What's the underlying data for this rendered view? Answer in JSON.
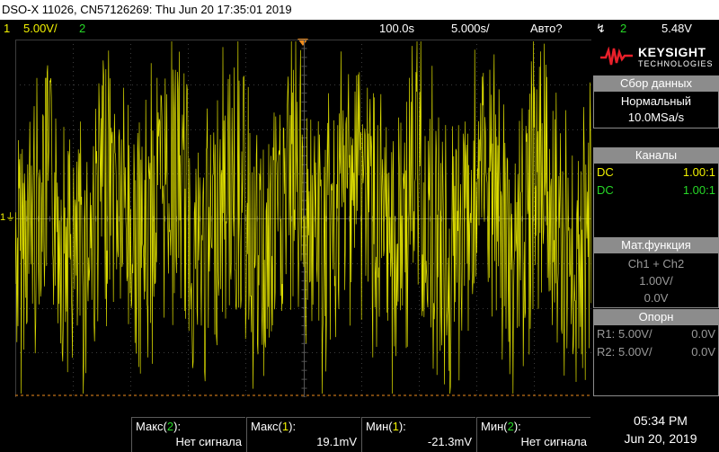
{
  "title_bar": "DSO-X 11026, CN57126269: Thu Jun 20 17:35:01 2019",
  "status": {
    "ch1_num": "1",
    "ch1_scale": "5.00V/",
    "ch2_num": "2",
    "timebase_pos": "100.0s",
    "timebase_scale": "5.000s/",
    "trigger_mode": "Авто?",
    "trigger_icon": "trigger-edge-icon",
    "trigger_src": "2",
    "trigger_level": "5.48V"
  },
  "logo": {
    "brand": "KEYSIGHT",
    "sub": "TECHNOLOGIES"
  },
  "acquisition": {
    "header": "Сбор данных",
    "mode": "Нормальный",
    "rate": "10.0MSa/s"
  },
  "channels": {
    "header": "Каналы",
    "items": [
      {
        "coupling": "DC",
        "ratio": "1.00:1",
        "color": "#f2f200"
      },
      {
        "coupling": "DC",
        "ratio": "1.00:1",
        "color": "#27d827"
      }
    ]
  },
  "math": {
    "header": "Мат.функция",
    "expr": "Ch1 + Ch2",
    "scale": "1.00V/",
    "offset": "0.0V"
  },
  "reference": {
    "header": "Опорн",
    "items": [
      {
        "name": "R1:",
        "scale": "5.00V/",
        "offset": "0.0V"
      },
      {
        "name": "R2:",
        "scale": "5.00V/",
        "offset": "0.0V"
      }
    ]
  },
  "measurements": [
    {
      "label": "Макс(2):",
      "value": "Нет сигнала",
      "color": "#27d827"
    },
    {
      "label": "Макс(1):",
      "value": "19.1mV",
      "color": "#f2f200"
    },
    {
      "label": "Мин(1):",
      "value": "-21.3mV",
      "color": "#f2f200"
    },
    {
      "label": "Мин(2):",
      "value": "Нет сигнала",
      "color": "#27d827"
    }
  ],
  "clock": {
    "time": "05:34 PM",
    "date": "Jun 20, 2019"
  },
  "ground_marker": "1",
  "colors": {
    "ch1": "#f2f200",
    "ch2": "#27d827",
    "panel": "#8c8c8c",
    "trigger": "#f08c1c"
  }
}
